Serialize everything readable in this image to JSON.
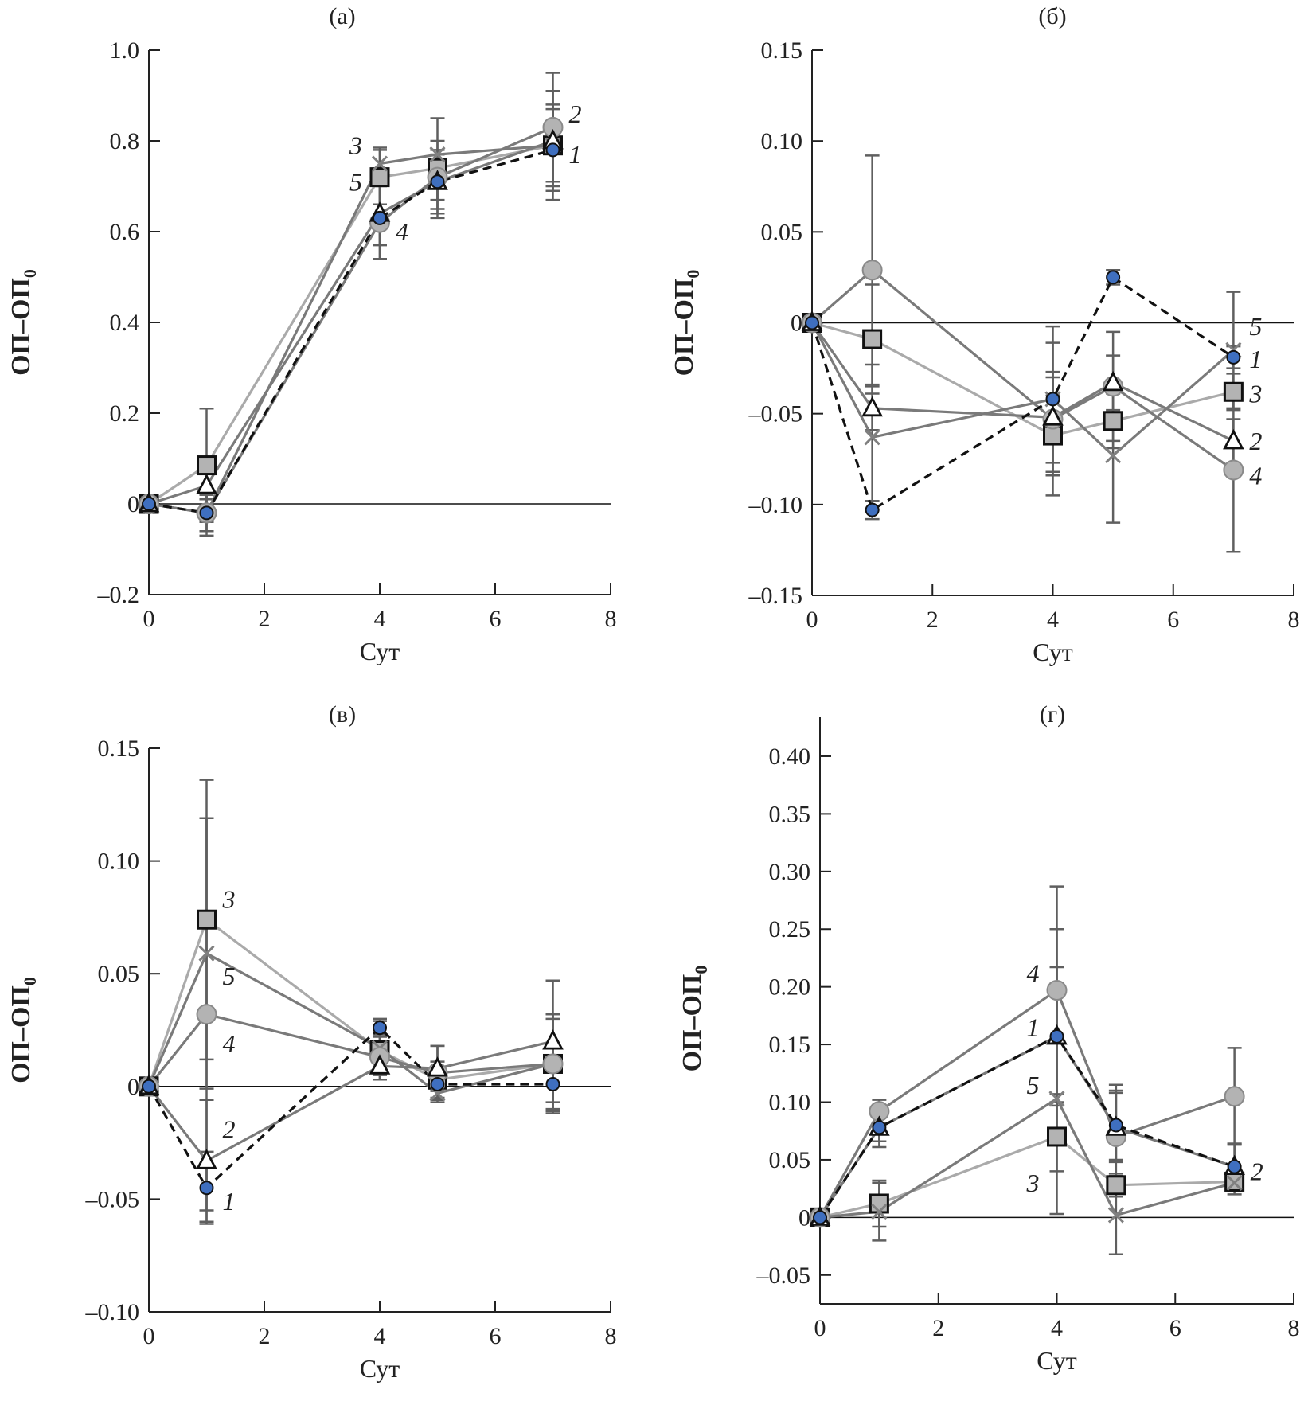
{
  "chart_data": [
    {
      "type": "line",
      "title": "(а)",
      "xlabel": "Сут",
      "ylabel": "ОП–ОП",
      "ylabel_subscript": "0",
      "x": [
        0,
        1,
        4,
        5,
        7
      ],
      "xlim": [
        0,
        8
      ],
      "ylim": [
        -0.2,
        1.0
      ],
      "xticks": [
        0,
        2,
        4,
        6,
        8
      ],
      "yticks": [
        -0.2,
        0,
        0.2,
        0.4,
        0.6,
        0.8,
        1.0
      ],
      "ytick_labels": [
        "–0.2",
        "0",
        "0.2",
        "0.4",
        "0.6",
        "0.8",
        "1.0"
      ],
      "grid": false,
      "zero_line": true,
      "series": [
        {
          "name": "1",
          "marker": "circle-blue",
          "line": "dashed",
          "values": [
            0,
            -0.02,
            0.63,
            0.71,
            0.78
          ],
          "err": [
            0,
            0.04,
            0.09,
            0.06,
            0.09
          ]
        },
        {
          "name": "2",
          "marker": "triangle",
          "line": "solid-dark",
          "values": [
            0,
            0.04,
            0.64,
            0.71,
            0.8
          ],
          "err": [
            0,
            0.03,
            0.07,
            0.07,
            0.11
          ]
        },
        {
          "name": "3",
          "marker": "square",
          "line": "solid-light",
          "values": [
            0,
            0.085,
            0.72,
            0.74,
            0.79
          ],
          "err": [
            0,
            0.125,
            0.06,
            0.11,
            0.12
          ]
        },
        {
          "name": "4",
          "marker": "circle-gray",
          "line": "solid-dark",
          "values": [
            0,
            -0.02,
            0.62,
            0.72,
            0.83
          ],
          "err": [
            0,
            0.05,
            0.08,
            0.05,
            0.12
          ]
        },
        {
          "name": "5",
          "marker": "x",
          "line": "solid-dark",
          "values": [
            0,
            -0.02,
            0.75,
            0.77,
            0.79
          ],
          "err": [
            0,
            0.04,
            0.035,
            0.03,
            0.09
          ]
        }
      ],
      "annotations": [
        {
          "text": "3",
          "x": 4,
          "y": 0.79,
          "pos": "left"
        },
        {
          "text": "5",
          "x": 4,
          "y": 0.71,
          "pos": "left"
        },
        {
          "text": "4",
          "x": 4,
          "y": 0.6,
          "pos": "right"
        },
        {
          "text": "2",
          "x": 7,
          "y": 0.86,
          "pos": "right"
        },
        {
          "text": "1",
          "x": 7,
          "y": 0.77,
          "pos": "right"
        }
      ]
    },
    {
      "type": "line",
      "title": "(б)",
      "xlabel": "Сут",
      "ylabel": "ОП–ОП",
      "ylabel_subscript": "0",
      "x": [
        0,
        1,
        4,
        5,
        7
      ],
      "xlim": [
        0,
        8
      ],
      "ylim": [
        -0.15,
        0.15
      ],
      "xticks": [
        0,
        2,
        4,
        6,
        8
      ],
      "yticks": [
        -0.15,
        -0.1,
        -0.05,
        0,
        0.05,
        0.1,
        0.15
      ],
      "ytick_labels": [
        "–0.15",
        "–0.10",
        "–0.05",
        "0",
        "0.05",
        "0.10",
        "0.15"
      ],
      "grid": false,
      "zero_line": true,
      "series": [
        {
          "name": "1",
          "marker": "circle-blue",
          "line": "dashed",
          "values": [
            0,
            -0.103,
            -0.042,
            0.025,
            -0.019
          ],
          "err": [
            0,
            0.005,
            0.012,
            0.004,
            0.006
          ]
        },
        {
          "name": "2",
          "marker": "triangle",
          "line": "solid-dark",
          "values": [
            0,
            -0.047,
            -0.052,
            -0.033,
            -0.065
          ],
          "err": [
            0,
            0.012,
            0.025,
            0.015,
            0.012
          ]
        },
        {
          "name": "3",
          "marker": "square",
          "line": "solid-light",
          "values": [
            0,
            -0.009,
            -0.062,
            -0.054,
            -0.038
          ],
          "err": [
            0,
            0.03,
            0.022,
            0.015,
            0.01
          ]
        },
        {
          "name": "4",
          "marker": "circle-gray",
          "line": "solid-dark",
          "values": [
            0,
            0.029,
            -0.053,
            -0.035,
            -0.081
          ],
          "err": [
            0,
            0.063,
            0.042,
            0.03,
            0.045
          ]
        },
        {
          "name": "5",
          "marker": "x",
          "line": "solid-dark",
          "values": [
            0,
            -0.063,
            -0.042,
            -0.073,
            -0.015
          ],
          "err": [
            0,
            0.04,
            0.04,
            0.037,
            0.032
          ]
        }
      ],
      "annotations": [
        {
          "text": "5",
          "x": 7,
          "y": -0.002,
          "pos": "right"
        },
        {
          "text": "1",
          "x": 7,
          "y": -0.02,
          "pos": "right"
        },
        {
          "text": "3",
          "x": 7,
          "y": -0.039,
          "pos": "right"
        },
        {
          "text": "2",
          "x": 7,
          "y": -0.065,
          "pos": "right"
        },
        {
          "text": "4",
          "x": 7,
          "y": -0.084,
          "pos": "right"
        }
      ]
    },
    {
      "type": "line",
      "title": "(в)",
      "xlabel": "Сут",
      "ylabel": "ОП–ОП",
      "ylabel_subscript": "0",
      "x": [
        0,
        1,
        4,
        5,
        7
      ],
      "xlim": [
        0,
        8
      ],
      "ylim": [
        -0.1,
        0.15
      ],
      "xticks": [
        0,
        2,
        4,
        6,
        8
      ],
      "yticks": [
        -0.1,
        -0.05,
        0,
        0.05,
        0.1,
        0.15
      ],
      "ytick_labels": [
        "–0.10",
        "–0.05",
        "0",
        "0.05",
        "0.10",
        "0.15"
      ],
      "grid": false,
      "zero_line": true,
      "series": [
        {
          "name": "1",
          "marker": "circle-blue",
          "line": "dashed",
          "values": [
            0,
            -0.045,
            0.026,
            0.001,
            0.001
          ],
          "err": [
            0,
            0.016,
            0.004,
            0.003,
            0.012
          ]
        },
        {
          "name": "2",
          "marker": "triangle",
          "line": "solid-dark",
          "values": [
            0,
            -0.033,
            0.009,
            0.008,
            0.02
          ],
          "err": [
            0,
            0.027,
            0.006,
            0.01,
            0.027
          ]
        },
        {
          "name": "3",
          "marker": "square",
          "line": "solid-light",
          "values": [
            0,
            0.074,
            0.016,
            0.003,
            0.01
          ],
          "err": [
            0,
            0.062,
            0.01,
            0.008,
            0.02
          ]
        },
        {
          "name": "4",
          "marker": "circle-gray",
          "line": "solid-dark",
          "values": [
            0,
            0.032,
            0.013,
            0.006,
            0.01
          ],
          "err": [
            0,
            0.087,
            0.01,
            0.012,
            0.022
          ]
        },
        {
          "name": "5",
          "marker": "x",
          "line": "solid-dark",
          "values": [
            0,
            0.059,
            0.017,
            -0.003,
            0.01
          ],
          "err": [
            0,
            0.06,
            0.012,
            0.004,
            0.022
          ]
        }
      ],
      "annotations": [
        {
          "text": "3",
          "x": 1,
          "y": 0.083,
          "pos": "right"
        },
        {
          "text": "5",
          "x": 1,
          "y": 0.049,
          "pos": "right"
        },
        {
          "text": "4",
          "x": 1,
          "y": 0.019,
          "pos": "right"
        },
        {
          "text": "2",
          "x": 1,
          "y": -0.019,
          "pos": "right"
        },
        {
          "text": "1",
          "x": 1,
          "y": -0.051,
          "pos": "right"
        }
      ]
    },
    {
      "type": "line",
      "title": "(г)",
      "xlabel": "Сут",
      "ylabel": "ОП–ОП",
      "ylabel_subscript": "0",
      "x": [
        0,
        1,
        4,
        5,
        7
      ],
      "xlim": [
        0,
        8
      ],
      "ylim": [
        -0.075,
        0.42
      ],
      "xticks": [
        0,
        2,
        4,
        6,
        8
      ],
      "yticks": [
        -0.05,
        0,
        0.05,
        0.1,
        0.15,
        0.2,
        0.25,
        0.3,
        0.35,
        0.4
      ],
      "ytick_labels": [
        "–0.05",
        "0",
        "0.05",
        "0.10",
        "0.15",
        "0.20",
        "0.25",
        "0.30",
        "0.35",
        "0.40"
      ],
      "grid": false,
      "zero_line": true,
      "series": [
        {
          "name": "1",
          "marker": "circle-blue",
          "line": "dashed",
          "values": [
            0,
            0.078,
            0.157,
            0.08,
            0.044
          ],
          "err": [
            0,
            0.017,
            0.093,
            0.03,
            0.02
          ]
        },
        {
          "name": "2",
          "marker": "triangle",
          "line": "solid-dark",
          "values": [
            0,
            0.078,
            0.157,
            0.078,
            0.044
          ],
          "err": [
            0,
            0.012,
            0.06,
            0.03,
            0.02
          ]
        },
        {
          "name": "3",
          "marker": "square",
          "line": "solid-light",
          "values": [
            0,
            0.012,
            0.07,
            0.028,
            0.031
          ],
          "err": [
            0,
            0.02,
            0.03,
            0.01,
            0.008
          ]
        },
        {
          "name": "4",
          "marker": "circle-gray",
          "line": "solid-dark",
          "values": [
            0,
            0.092,
            0.197,
            0.07,
            0.105
          ],
          "err": [
            0,
            0.01,
            0.09,
            0.045,
            0.042
          ]
        },
        {
          "name": "5",
          "marker": "x",
          "line": "solid-dark",
          "values": [
            0,
            0.005,
            0.103,
            0.002,
            0.03
          ],
          "err": [
            0,
            0.025,
            0.1,
            0.034,
            0.01
          ]
        }
      ],
      "annotations": [
        {
          "text": "4",
          "x": 4,
          "y": 0.212,
          "pos": "left"
        },
        {
          "text": "1",
          "x": 4,
          "y": 0.165,
          "pos": "left"
        },
        {
          "text": "5",
          "x": 4,
          "y": 0.115,
          "pos": "left"
        },
        {
          "text": "3",
          "x": 4,
          "y": 0.03,
          "pos": "left"
        },
        {
          "text": "2",
          "x": 7,
          "y": 0.04,
          "pos": "right"
        }
      ]
    }
  ],
  "colors": {
    "series1_marker": "#3f6fbf",
    "series_dark_line": "#7a7a7a",
    "series_light_line": "#aaaaaa",
    "marker_gray_fill": "#b3b3b3",
    "errbar": "#5f5f5f",
    "axis": "#222222"
  }
}
